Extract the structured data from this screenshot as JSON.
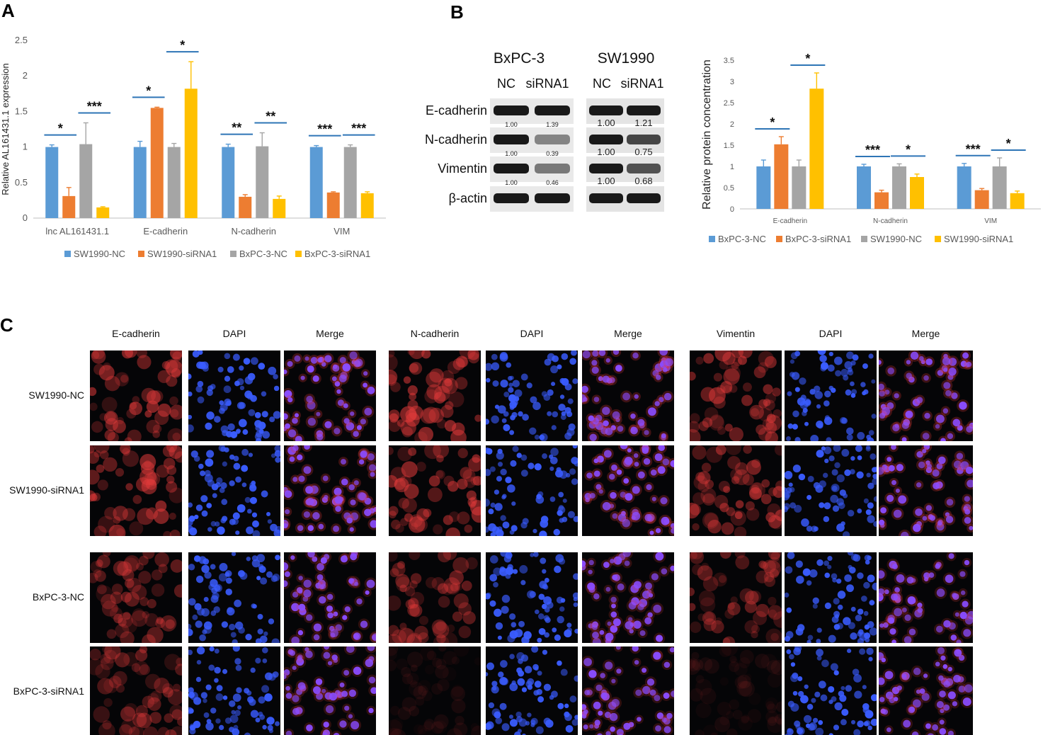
{
  "panel_letters": {
    "a": "A",
    "b": "B",
    "c": "C"
  },
  "colors": {
    "series1": "#5b9bd5",
    "series2": "#ed7d31",
    "series3": "#a5a5a5",
    "series4": "#ffc000",
    "sig_line": "#2e75b6",
    "red_stain": "#e23a3a",
    "blue_stain": "#3a5cff"
  },
  "chart_data": [
    {
      "id": "A",
      "type": "bar",
      "ylabel": "Relative AL161431.1 expression",
      "ylim": [
        0,
        2.5
      ],
      "yticks": [
        "0",
        "0.5",
        "1",
        "1.5",
        "2",
        "2.5"
      ],
      "categories": [
        "lnc AL161431.1",
        "E-cadherin",
        "N-cadherin",
        "VIM"
      ],
      "series": [
        {
          "name": "SW1990-NC",
          "values": [
            1.0,
            1.0,
            1.0,
            1.0
          ],
          "errors": [
            0.03,
            0.08,
            0.04,
            0.02
          ]
        },
        {
          "name": "SW1990-siRNA1",
          "values": [
            0.31,
            1.55,
            0.3,
            0.36
          ],
          "errors": [
            0.12,
            0.01,
            0.03,
            0.01
          ]
        },
        {
          "name": "BxPC-3-NC",
          "values": [
            1.04,
            1.0,
            1.01,
            1.0
          ],
          "errors": [
            0.3,
            0.05,
            0.19,
            0.03
          ]
        },
        {
          "name": "BxPC-3-siRNA1",
          "values": [
            0.15,
            1.82,
            0.27,
            0.35
          ],
          "errors": [
            0.01,
            0.38,
            0.04,
            0.02
          ]
        }
      ],
      "significance": [
        {
          "category": 0,
          "left": "*",
          "right": "***"
        },
        {
          "category": 1,
          "left": "*",
          "right": "*"
        },
        {
          "category": 2,
          "left": "**",
          "right": "**"
        },
        {
          "category": 3,
          "left": "***",
          "right": "***"
        }
      ],
      "grid": false,
      "legend": "bottom"
    },
    {
      "id": "B",
      "type": "bar",
      "ylabel": "Relative protein concentration",
      "ylim": [
        0,
        3.5
      ],
      "yticks": [
        "0",
        "0.5",
        "1",
        "1.5",
        "2",
        "2.5",
        "3",
        "3.5"
      ],
      "categories": [
        "E-cadherin",
        "N-cadherin",
        "VIM"
      ],
      "series": [
        {
          "name": "BxPC-3-NC",
          "values": [
            1.0,
            1.0,
            1.0
          ],
          "errors": [
            0.15,
            0.05,
            0.07
          ]
        },
        {
          "name": "BxPC-3-siRNA1",
          "values": [
            1.52,
            0.39,
            0.44
          ],
          "errors": [
            0.18,
            0.05,
            0.04
          ]
        },
        {
          "name": "SW1990-NC",
          "values": [
            1.0,
            1.0,
            1.0
          ],
          "errors": [
            0.15,
            0.06,
            0.2
          ]
        },
        {
          "name": "SW1990-siRNA1",
          "values": [
            2.83,
            0.75,
            0.37
          ],
          "errors": [
            0.37,
            0.07,
            0.05
          ]
        }
      ],
      "significance": [
        {
          "category": 0,
          "left": "*",
          "right": "*"
        },
        {
          "category": 1,
          "left": "***",
          "right": "*"
        },
        {
          "category": 2,
          "left": "***",
          "right": "*"
        }
      ],
      "grid": false,
      "legend": "bottom"
    }
  ],
  "blot": {
    "groups": [
      {
        "name": "BxPC-3",
        "lanes": [
          "NC",
          "siRNA1"
        ]
      },
      {
        "name": "SW1990",
        "lanes": [
          "NC",
          "siRNA1"
        ]
      }
    ],
    "rows": [
      {
        "label": "E-cadherin",
        "bxpc": [
          "1.00",
          "1.39"
        ],
        "sw": [
          "1.00",
          "1.21"
        ]
      },
      {
        "label": "N-cadherin",
        "bxpc": [
          "1.00",
          "0.39"
        ],
        "sw": [
          "1.00",
          "0.75"
        ]
      },
      {
        "label": "Vimentin",
        "bxpc": [
          "1.00",
          "0.46"
        ],
        "sw": [
          "1.00",
          "0.68"
        ]
      },
      {
        "label": "β-actin",
        "bxpc": [
          "",
          ""
        ],
        "sw": [
          "",
          ""
        ]
      }
    ]
  },
  "micrographs": {
    "column_headers": [
      "E-cadherin",
      "DAPI",
      "Merge",
      "N-cadherin",
      "DAPI",
      "Merge",
      "Vimentin",
      "DAPI",
      "Merge"
    ],
    "row_labels": [
      "SW1990-NC",
      "SW1990-siRNA1",
      "BxPC-3-NC",
      "BxPC-3-siRNA1"
    ]
  }
}
